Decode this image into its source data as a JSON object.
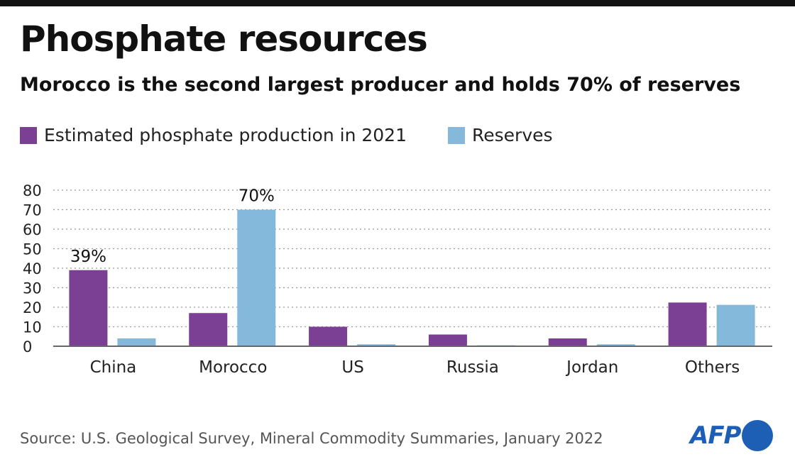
{
  "title": "Phosphate resources",
  "subtitle": "Morocco is the second largest producer and holds 70% of reserves",
  "source": "Source: U.S. Geological Survey, Mineral Commodity Summaries, January 2022",
  "logo": "AFP",
  "chart_data": {
    "type": "bar",
    "title": "Phosphate resources",
    "categories": [
      "China",
      "Morocco",
      "US",
      "Russia",
      "Jordan",
      "Others"
    ],
    "series": [
      {
        "name": "Estimated phosphate production in 2021",
        "color": "#7b3f94",
        "values": [
          39,
          17,
          10,
          6,
          4,
          22.4
        ]
      },
      {
        "name": "Reserves",
        "color": "#85b9dc",
        "values": [
          4,
          70,
          1,
          0.5,
          1,
          21.2
        ]
      }
    ],
    "data_labels": [
      {
        "category": "China",
        "series": 0,
        "text": "39%"
      },
      {
        "category": "Morocco",
        "series": 1,
        "text": "70%"
      }
    ],
    "yticks": [
      "0",
      "10",
      "20",
      "30",
      "40",
      "50",
      "60",
      "70",
      "80"
    ],
    "ylim": [
      0,
      80
    ],
    "grid": true,
    "legend": "top-left",
    "xlabel": "",
    "ylabel": ""
  }
}
